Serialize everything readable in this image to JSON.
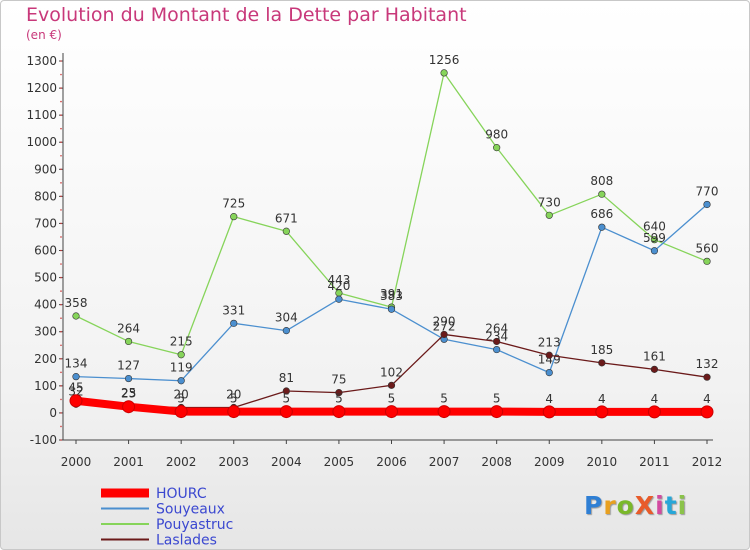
{
  "title": "Evolution du Montant de la Dette par Habitant",
  "subtitle": "(en €)",
  "logo": {
    "text": "ProXiti",
    "colors": [
      "#2f7fd4",
      "#e8a020",
      "#7ab82a",
      "#e85b2a",
      "#d34aa0",
      "#27a7d8",
      "#8bc34a"
    ]
  },
  "chart_data": {
    "type": "line",
    "title": "Evolution du Montant de la Dette par Habitant",
    "ylabel": "(en €)",
    "x": [
      "2000",
      "2001",
      "2002",
      "2003",
      "2004",
      "2005",
      "2006",
      "2007",
      "2008",
      "2009",
      "2010",
      "2011",
      "2012"
    ],
    "ylim": [
      -100,
      1300
    ],
    "yticks": [
      -100,
      0,
      100,
      200,
      300,
      400,
      500,
      600,
      700,
      800,
      900,
      1000,
      1100,
      1200,
      1300
    ],
    "grid": false,
    "legend": "bottom-left",
    "series": [
      {
        "name": "HOURC",
        "color": "#ff0000",
        "values": [
          45,
          23,
          5,
          5,
          5,
          5,
          5,
          5,
          5,
          4,
          4,
          4,
          4
        ],
        "labels": [
          "45",
          "23",
          "5",
          "5",
          "5",
          "5",
          "5",
          "5",
          "5",
          "4",
          "4",
          "4",
          "4"
        ]
      },
      {
        "name": "Souyeaux",
        "color": "#4b8fcf",
        "values": [
          134,
          127,
          119,
          331,
          304,
          420,
          383,
          272,
          234,
          149,
          686,
          599,
          770
        ],
        "labels": [
          "134",
          "127",
          "119",
          "331",
          "304",
          "420",
          "383",
          "272",
          "234",
          "149",
          "686",
          "599",
          "770"
        ]
      },
      {
        "name": "Pouyastruc",
        "color": "#86d45a",
        "values": [
          358,
          264,
          215,
          725,
          671,
          443,
          391,
          1256,
          980,
          730,
          808,
          640,
          560
        ],
        "labels": [
          "358",
          "264",
          "215",
          "725",
          "671",
          "443",
          "391",
          "1256",
          "980",
          "730",
          "808",
          "640",
          "560"
        ]
      },
      {
        "name": "Laslades",
        "color": "#6b1a1a",
        "values": [
          32,
          25,
          20,
          20,
          81,
          75,
          102,
          290,
          264,
          213,
          185,
          161,
          132
        ],
        "labels": [
          "32",
          "25",
          "20",
          "20",
          "81",
          "75",
          "102",
          "290",
          "264",
          "213",
          "185",
          "161",
          "132"
        ]
      }
    ]
  }
}
